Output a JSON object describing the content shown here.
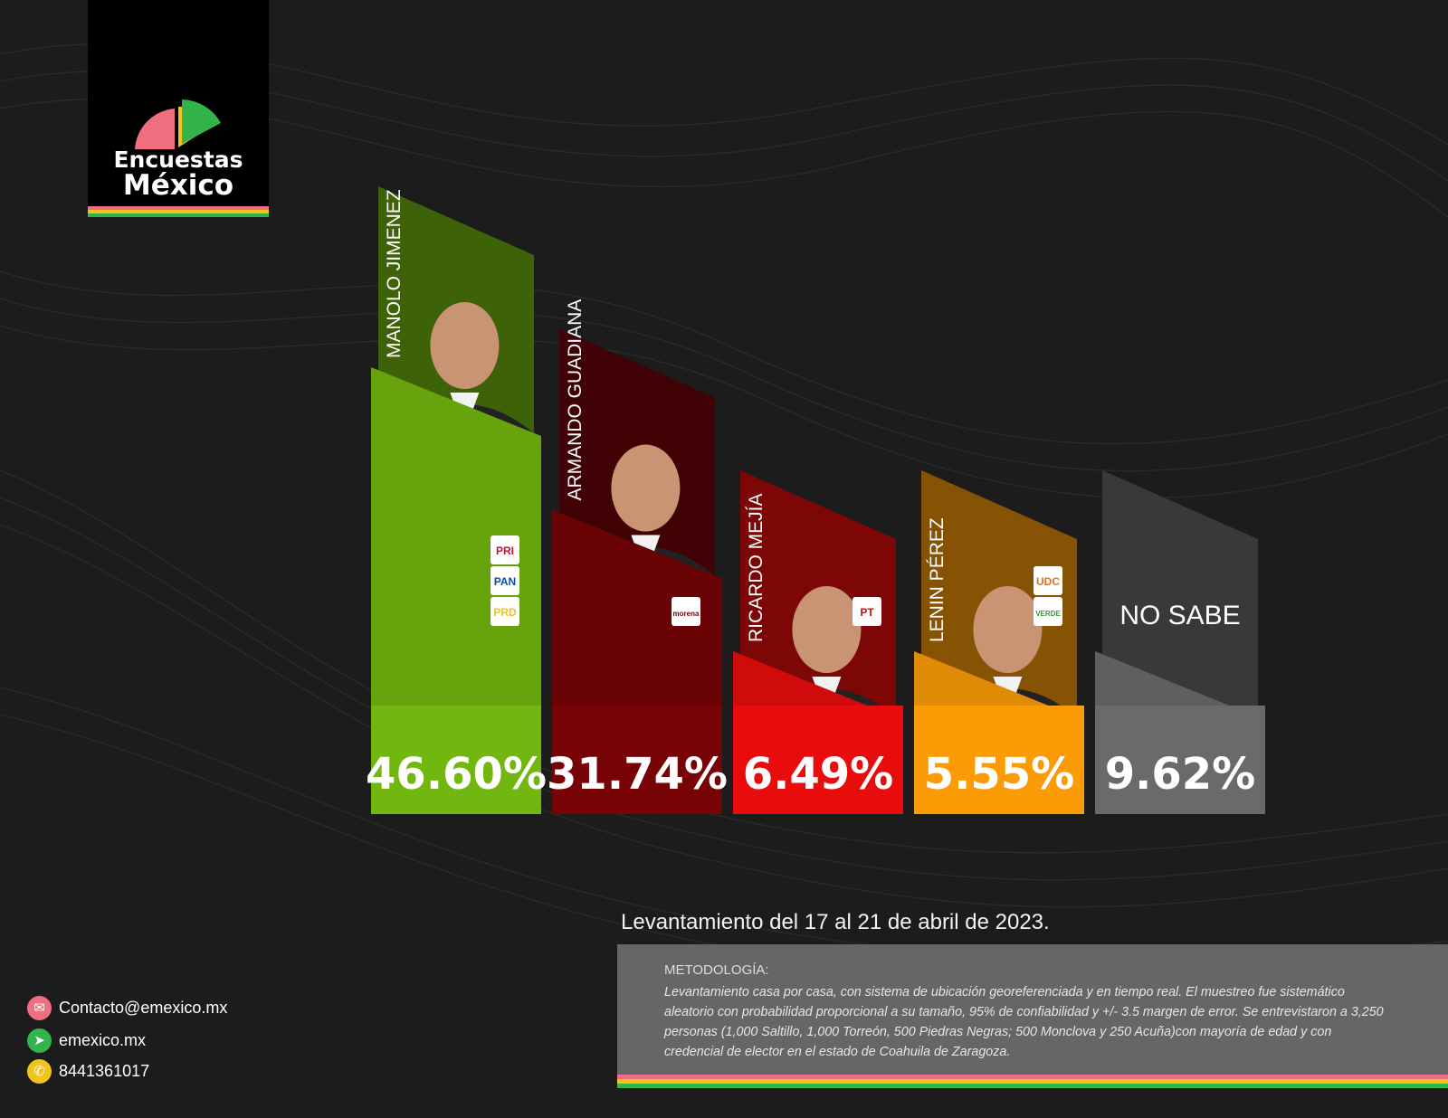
{
  "brand": {
    "line1": "Encuestas",
    "line2": "México",
    "colors": {
      "pink": "#f06f7e",
      "green": "#33b44a",
      "yellow": "#f2c31a"
    }
  },
  "chart_data": {
    "type": "bar",
    "title": "",
    "xlabel": "",
    "ylabel": "",
    "ylim": [
      0,
      50
    ],
    "grid": false,
    "legend": "none",
    "categories": [
      "MANOLO JIMENEZ",
      "ARMANDO GUADIANA",
      "RICARDO MEJÍA",
      "LENIN PÉREZ",
      "NO SABE"
    ],
    "values": [
      46.6,
      31.74,
      6.49,
      5.55,
      9.62
    ],
    "value_labels": [
      "46.60%",
      "31.74%",
      "6.49%",
      "5.55%",
      "9.62%"
    ],
    "colors": [
      "#66a30d",
      "#6a0306",
      "#d00b0b",
      "#e08b06",
      "#5f5f5f"
    ],
    "party_logos": [
      [
        "PRI",
        "PAN",
        "PRD"
      ],
      [
        "morena"
      ],
      [
        "PT"
      ],
      [
        "UDC",
        "VERDE"
      ],
      []
    ]
  },
  "footer": {
    "date": "Levantamiento del 17 al 21 de abril de 2023.",
    "methodology_title": "METODOLOGÍA:",
    "methodology_text": "Levantamiento casa por casa, con sistema de ubicación georeferenciada y en tiempo real. El muestreo fue sistemático aleatorio con probabilidad proporcional a su tamaño, 95% de confiabilidad y +/- 3.5 margen de error. Se entrevistaron a 3,250 personas  (1,000 Saltillo, 1,000 Torreón, 500 Piedras Negras; 500 Monclova y 250 Acuña)con mayoría de edad y con credencial de elector en el estado de Coahuila de Zaragoza."
  },
  "contact": {
    "email": "Contacto@emexico.mx",
    "web": "emexico.mx",
    "phone": "8441361017",
    "icons": [
      "mail-icon",
      "cursor-icon",
      "phone-icon"
    ]
  }
}
